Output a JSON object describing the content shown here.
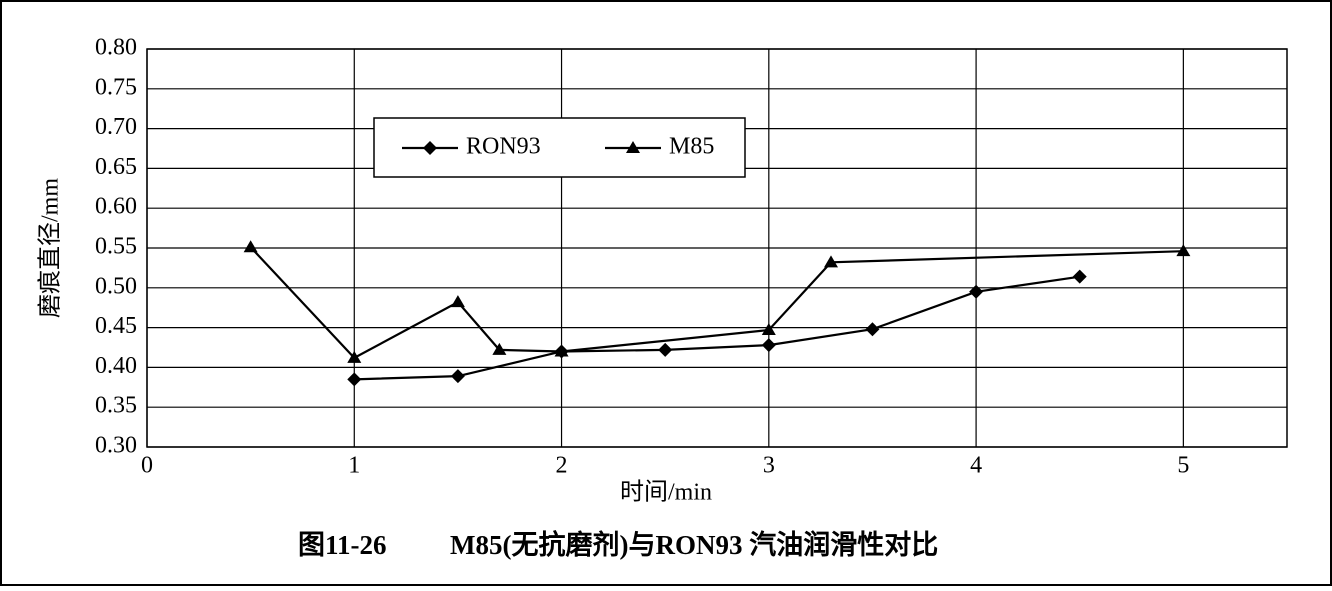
{
  "chart_data": {
    "type": "line",
    "figure_label": "图11-26",
    "title": "M85(无抗磨剂)与RON93 汽油润滑性对比",
    "x_label": "时间/min",
    "y_label": "磨痕直径/mm",
    "xlim": [
      0,
      5.5
    ],
    "xticks": [
      0,
      1,
      2,
      3,
      4,
      5
    ],
    "ylim": [
      0.3,
      0.8
    ],
    "yticks": [
      {
        "value": 0.3,
        "label": "0.30"
      },
      {
        "value": 0.35,
        "label": "0.35"
      },
      {
        "value": 0.4,
        "label": "0.40"
      },
      {
        "value": 0.45,
        "label": "0.45"
      },
      {
        "value": 0.5,
        "label": "0.50"
      },
      {
        "value": 0.55,
        "label": "0.55"
      },
      {
        "value": 0.6,
        "label": "0.60"
      },
      {
        "value": 0.65,
        "label": "0.65"
      },
      {
        "value": 0.7,
        "label": "0.70"
      },
      {
        "value": 0.75,
        "label": "0.75"
      },
      {
        "value": 0.8,
        "label": "0.80"
      }
    ],
    "grid": true,
    "legend": "top-left",
    "series": [
      {
        "name": "RON93",
        "color": "#000000",
        "marker": "diamond",
        "x": [
          1,
          1.5,
          2,
          2.5,
          3,
          3.5,
          4,
          4.5
        ],
        "values": [
          0.385,
          0.389,
          0.42,
          0.422,
          0.428,
          0.448,
          0.495,
          0.514
        ]
      },
      {
        "name": "M85",
        "color": "#000000",
        "marker": "triangle",
        "x": [
          0.5,
          1,
          1.5,
          1.7,
          2,
          3,
          3.3,
          5
        ],
        "values": [
          0.551,
          0.412,
          0.482,
          0.422,
          0.42,
          0.447,
          0.532,
          0.546
        ]
      }
    ]
  }
}
